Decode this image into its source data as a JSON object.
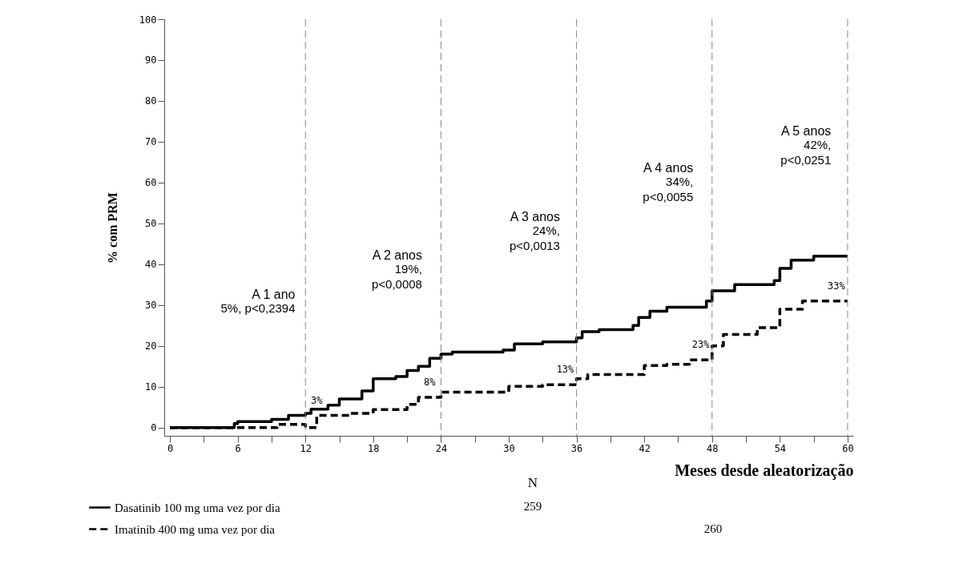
{
  "chart_data": {
    "type": "step",
    "xlabel": "Meses desde aleatorização",
    "ylabel": "% com PRM",
    "xlim": [
      -0.5,
      60.5
    ],
    "ylim": [
      -2,
      100
    ],
    "xticks": [
      0,
      {
        "value": 3,
        "label": null
      },
      6,
      {
        "value": 9,
        "label": null
      },
      12,
      {
        "value": 15,
        "label": null
      },
      18,
      {
        "value": 21,
        "label": null
      },
      24,
      {
        "value": 27,
        "label": null
      },
      30,
      {
        "value": 33,
        "label": null
      },
      36,
      {
        "value": 39,
        "label": null
      },
      42,
      {
        "value": 45,
        "label": null
      },
      48,
      {
        "value": 51,
        "label": null
      },
      54,
      {
        "value": 57,
        "label": null
      },
      60
    ],
    "yticks": [
      0,
      10,
      20,
      30,
      40,
      50,
      60,
      70,
      80,
      90,
      100
    ],
    "grid": false,
    "legend": "bottom left",
    "marker": "none",
    "series": [
      {
        "name": "Dasatinib 100 mg uma vez por dia",
        "color": "#000000",
        "line_style": "solid",
        "x": [
          0,
          5.7,
          6,
          9,
          10.5,
          12,
          12.5,
          14,
          15,
          17,
          18,
          20,
          21,
          22,
          23,
          24,
          25,
          29.5,
          30.5,
          33,
          36,
          36.5,
          38,
          41,
          41.5,
          42.5,
          44,
          47.5,
          48,
          50,
          53.5,
          54,
          55,
          57,
          60
        ],
        "values": [
          0,
          1,
          1.5,
          2,
          3,
          3.5,
          4.5,
          5.5,
          7,
          9,
          12,
          12.5,
          14,
          15,
          17,
          18,
          18.5,
          19,
          20.5,
          21,
          22,
          23.5,
          24,
          25,
          27,
          28.5,
          29.5,
          31,
          33.5,
          35,
          36,
          39,
          41,
          42,
          42
        ]
      },
      {
        "name": "Imatinib 400 mg uma vez por dia",
        "color": "#000000",
        "line_style": "dashed",
        "x": [
          0,
          9.5,
          12,
          13,
          16,
          18,
          21,
          22,
          24,
          30,
          33,
          36,
          37,
          42,
          44,
          46,
          48,
          49,
          52,
          54,
          56,
          60
        ],
        "values": [
          0,
          0.8,
          0,
          3,
          3.5,
          4.4,
          5.7,
          7.4,
          8.7,
          10.1,
          10.5,
          12,
          13,
          15.2,
          15.5,
          16.6,
          20,
          22.8,
          24.5,
          29,
          31,
          31
        ]
      }
    ],
    "ref_lines": [
      {
        "axis": "x",
        "value": 12,
        "label": null,
        "color": "#888888",
        "line_style": "dashed"
      },
      {
        "axis": "x",
        "value": 24,
        "label": null,
        "color": "#888888",
        "line_style": "dashed"
      },
      {
        "axis": "x",
        "value": 36,
        "label": null,
        "color": "#888888",
        "line_style": "dashed"
      },
      {
        "axis": "x",
        "value": 48,
        "label": null,
        "color": "#888888",
        "line_style": "dashed"
      },
      {
        "axis": "x",
        "value": 60,
        "label": null,
        "color": "#888888",
        "line_style": "dashed"
      }
    ],
    "annotations": [
      "A 1 ano\n5%, p<0,2394",
      "A 2 anos\n19%,\np<0,0008",
      "A 3 anos\n24%,\np<0,0013",
      "A 4 anos\n34%,\np<0,0055",
      "A 5 anos\n42%,\np<0,0251",
      {
        "text": "3%",
        "x": 13,
        "y": 3
      },
      {
        "text": "8%",
        "x": 23,
        "y": 7.4
      },
      {
        "text": "13%",
        "x": 35,
        "y": 10.5
      },
      {
        "text": "23%",
        "x": 47,
        "y": 16.6
      },
      {
        "text": "33%",
        "x": 59,
        "y": 31
      },
      "N",
      "259",
      "260"
    ]
  }
}
